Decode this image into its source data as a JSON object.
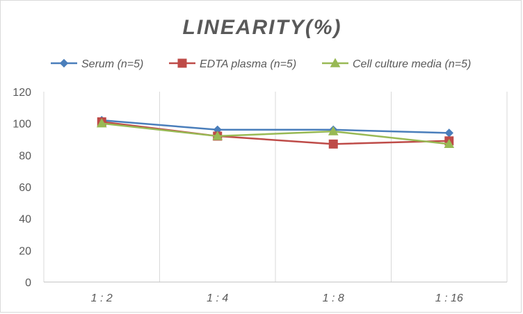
{
  "chart_data": {
    "type": "line",
    "title": "LINEARITY(%)",
    "categories": [
      "1:2",
      "1:4",
      "1:8",
      "1:16"
    ],
    "ylim": [
      0,
      120
    ],
    "yticks": [
      0,
      20,
      40,
      60,
      80,
      100,
      120
    ],
    "grid": "vertical category gridlines",
    "legend_position": "top",
    "series": [
      {
        "name": "Serum (n=5)",
        "values": [
          102,
          96,
          96,
          94
        ],
        "color": "#4a7ebb",
        "marker": "diamond"
      },
      {
        "name": "EDTA plasma (n=5)",
        "values": [
          101,
          92,
          87,
          89
        ],
        "color": "#be4b48",
        "marker": "square"
      },
      {
        "name": "Cell culture media (n=5)",
        "values": [
          100,
          92,
          95,
          87
        ],
        "color": "#98b954",
        "marker": "triangle"
      }
    ]
  }
}
